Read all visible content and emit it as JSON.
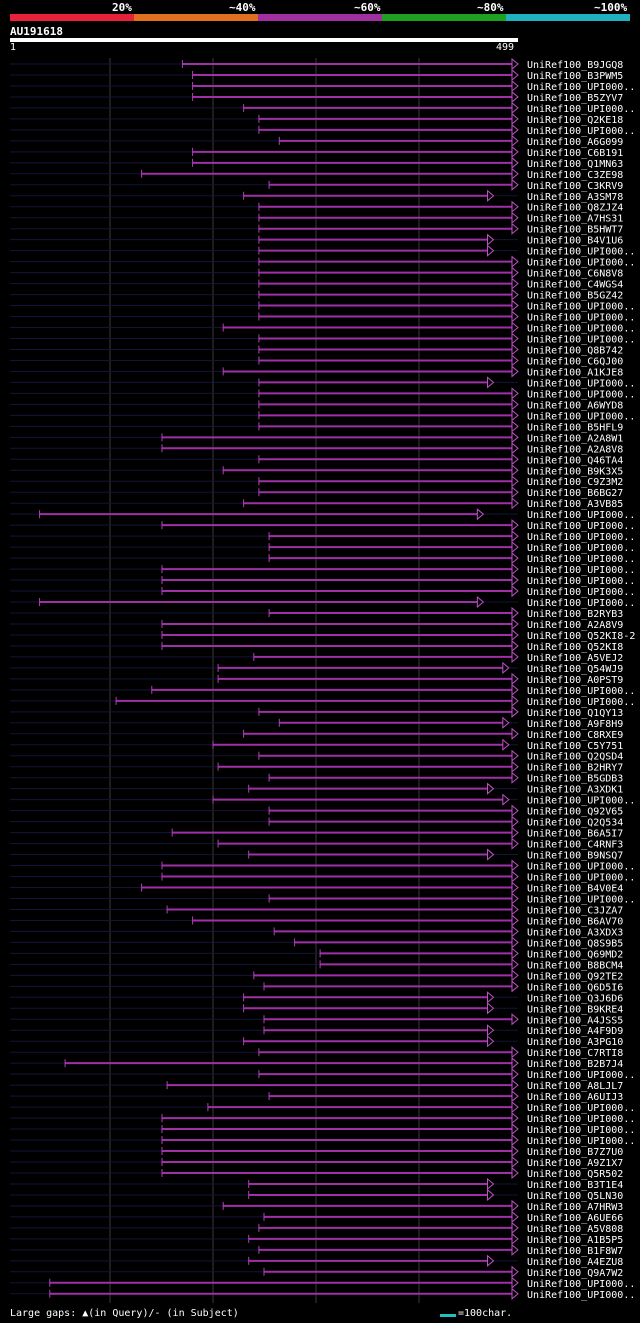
{
  "header": {
    "percent_labels": [
      "20%",
      "~40%",
      "~60%",
      "~80%",
      "~100%"
    ],
    "colors": [
      "#e8203a",
      "#e07020",
      "#a030a0",
      "#20a020",
      "#20b0c0"
    ],
    "query_id": "AU191618",
    "ruler_start": "1",
    "ruler_end": "499"
  },
  "footer": {
    "gaps_text": "Large gaps: ▲(in Query)/- (in Subject)",
    "scale_text": "=100char."
  },
  "chart_data": {
    "type": "alignment",
    "query_length": 499,
    "rows": [
      {
        "name": "UniRef100_B9JGQ8",
        "start": 170,
        "end": 499
      },
      {
        "name": "UniRef100_B3PWM5",
        "start": 180,
        "end": 499
      },
      {
        "name": "UniRef100_UPI000..",
        "start": 180,
        "end": 499
      },
      {
        "name": "UniRef100_B5ZYV7",
        "start": 180,
        "end": 499
      },
      {
        "name": "UniRef100_UPI000..",
        "start": 230,
        "end": 499
      },
      {
        "name": "UniRef100_Q2KE18",
        "start": 245,
        "end": 499
      },
      {
        "name": "UniRef100_UPI000..",
        "start": 245,
        "end": 499
      },
      {
        "name": "UniRef100_A6G099",
        "start": 265,
        "end": 499
      },
      {
        "name": "UniRef100_C6B191",
        "start": 180,
        "end": 499
      },
      {
        "name": "UniRef100_Q1MN63",
        "start": 180,
        "end": 499
      },
      {
        "name": "UniRef100_C3ZE98",
        "start": 130,
        "end": 499
      },
      {
        "name": "UniRef100_C3KRV9",
        "start": 255,
        "end": 499
      },
      {
        "name": "UniRef100_A3SM78",
        "start": 230,
        "end": 475
      },
      {
        "name": "UniRef100_Q8ZJZ4",
        "start": 245,
        "end": 499
      },
      {
        "name": "UniRef100_A7HS31",
        "start": 245,
        "end": 499
      },
      {
        "name": "UniRef100_B5HWT7",
        "start": 245,
        "end": 499
      },
      {
        "name": "UniRef100_B4V1U6",
        "start": 245,
        "end": 475
      },
      {
        "name": "UniRef100_UPI000..",
        "start": 245,
        "end": 475
      },
      {
        "name": "UniRef100_UPI000..",
        "start": 245,
        "end": 499
      },
      {
        "name": "UniRef100_C6N8V8",
        "start": 245,
        "end": 499
      },
      {
        "name": "UniRef100_C4WGS4",
        "start": 245,
        "end": 499
      },
      {
        "name": "UniRef100_B5GZ42",
        "start": 245,
        "end": 499
      },
      {
        "name": "UniRef100_UPI000..",
        "start": 245,
        "end": 499
      },
      {
        "name": "UniRef100_UPI000..",
        "start": 245,
        "end": 499
      },
      {
        "name": "UniRef100_UPI000..",
        "start": 210,
        "end": 499
      },
      {
        "name": "UniRef100_UPI000..",
        "start": 245,
        "end": 499
      },
      {
        "name": "UniRef100_Q8B742",
        "start": 245,
        "end": 499
      },
      {
        "name": "UniRef100_C6QJ00",
        "start": 245,
        "end": 499
      },
      {
        "name": "UniRef100_A1KJE8",
        "start": 210,
        "end": 499
      },
      {
        "name": "UniRef100_UPI000..",
        "start": 245,
        "end": 475
      },
      {
        "name": "UniRef100_UPI000..",
        "start": 245,
        "end": 499
      },
      {
        "name": "UniRef100_A6WYD8",
        "start": 245,
        "end": 499
      },
      {
        "name": "UniRef100_UPI000..",
        "start": 245,
        "end": 499
      },
      {
        "name": "UniRef100_B5HFL9",
        "start": 245,
        "end": 499
      },
      {
        "name": "UniRef100_A2A8W1",
        "start": 150,
        "end": 499
      },
      {
        "name": "UniRef100_A2A8V8",
        "start": 150,
        "end": 499
      },
      {
        "name": "UniRef100_Q46TA4",
        "start": 245,
        "end": 499
      },
      {
        "name": "UniRef100_B9K3X5",
        "start": 210,
        "end": 499
      },
      {
        "name": "UniRef100_C9Z3M2",
        "start": 245,
        "end": 499
      },
      {
        "name": "UniRef100_B6BG27",
        "start": 245,
        "end": 499
      },
      {
        "name": "UniRef100_A3VB85",
        "start": 230,
        "end": 499
      },
      {
        "name": "UniRef100_UPI000..",
        "start": 30,
        "end": 465
      },
      {
        "name": "UniRef100_UPI000..",
        "start": 150,
        "end": 499
      },
      {
        "name": "UniRef100_UPI000..",
        "start": 255,
        "end": 499
      },
      {
        "name": "UniRef100_UPI000..",
        "start": 255,
        "end": 499
      },
      {
        "name": "UniRef100_UPI000..",
        "start": 255,
        "end": 499
      },
      {
        "name": "UniRef100_UPI000..",
        "start": 150,
        "end": 499
      },
      {
        "name": "UniRef100_UPI000..",
        "start": 150,
        "end": 499
      },
      {
        "name": "UniRef100_UPI000..",
        "start": 150,
        "end": 499
      },
      {
        "name": "UniRef100_UPI000..",
        "start": 30,
        "end": 465
      },
      {
        "name": "UniRef100_B2RYB3",
        "start": 255,
        "end": 499
      },
      {
        "name": "UniRef100_A2A8V9",
        "start": 150,
        "end": 499
      },
      {
        "name": "UniRef100_Q52KI8-2",
        "start": 150,
        "end": 499
      },
      {
        "name": "UniRef100_Q52KI8",
        "start": 150,
        "end": 499
      },
      {
        "name": "UniRef100_A5VEJ2",
        "start": 240,
        "end": 499
      },
      {
        "name": "UniRef100_Q54WJ9",
        "start": 205,
        "end": 490
      },
      {
        "name": "UniRef100_A0PST9",
        "start": 205,
        "end": 499
      },
      {
        "name": "UniRef100_UPI000..",
        "start": 140,
        "end": 499
      },
      {
        "name": "UniRef100_UPI000..",
        "start": 105,
        "end": 499
      },
      {
        "name": "UniRef100_Q1QY13",
        "start": 245,
        "end": 499
      },
      {
        "name": "UniRef100_A9F8H9",
        "start": 265,
        "end": 490
      },
      {
        "name": "UniRef100_C8RXE9",
        "start": 230,
        "end": 499
      },
      {
        "name": "UniRef100_C5Y751",
        "start": 200,
        "end": 490
      },
      {
        "name": "UniRef100_Q2QSD4",
        "start": 245,
        "end": 499
      },
      {
        "name": "UniRef100_B2HRY7",
        "start": 205,
        "end": 499
      },
      {
        "name": "UniRef100_B5GDB3",
        "start": 255,
        "end": 499
      },
      {
        "name": "UniRef100_A3XDK1",
        "start": 235,
        "end": 475
      },
      {
        "name": "UniRef100_UPI000..",
        "start": 200,
        "end": 490
      },
      {
        "name": "UniRef100_Q92V65",
        "start": 255,
        "end": 499
      },
      {
        "name": "UniRef100_Q2Q534",
        "start": 255,
        "end": 499
      },
      {
        "name": "UniRef100_B6A5I7",
        "start": 160,
        "end": 499
      },
      {
        "name": "UniRef100_C4RNF3",
        "start": 205,
        "end": 499
      },
      {
        "name": "UniRef100_B9NSQ7",
        "start": 235,
        "end": 475
      },
      {
        "name": "UniRef100_UPI000..",
        "start": 150,
        "end": 499
      },
      {
        "name": "UniRef100_UPI000..",
        "start": 150,
        "end": 499
      },
      {
        "name": "UniRef100_B4V0E4",
        "start": 130,
        "end": 499
      },
      {
        "name": "UniRef100_UPI000..",
        "start": 255,
        "end": 499
      },
      {
        "name": "UniRef100_C3JZA7",
        "start": 155,
        "end": 499
      },
      {
        "name": "UniRef100_B6AV70",
        "start": 180,
        "end": 499
      },
      {
        "name": "UniRef100_A3XDX3",
        "start": 260,
        "end": 499
      },
      {
        "name": "UniRef100_Q8S9B5",
        "start": 280,
        "end": 499
      },
      {
        "name": "UniRef100_Q69MD2",
        "start": 305,
        "end": 499
      },
      {
        "name": "UniRef100_B8BCM4",
        "start": 305,
        "end": 499
      },
      {
        "name": "UniRef100_Q92TE2",
        "start": 240,
        "end": 499
      },
      {
        "name": "UniRef100_Q6D5I6",
        "start": 250,
        "end": 499
      },
      {
        "name": "UniRef100_Q3J6D6",
        "start": 230,
        "end": 475
      },
      {
        "name": "UniRef100_B9KRE4",
        "start": 230,
        "end": 475
      },
      {
        "name": "UniRef100_A4JSS5",
        "start": 250,
        "end": 499
      },
      {
        "name": "UniRef100_A4F9D9",
        "start": 250,
        "end": 475
      },
      {
        "name": "UniRef100_A3PG10",
        "start": 230,
        "end": 475
      },
      {
        "name": "UniRef100_C7RTI8",
        "start": 245,
        "end": 499
      },
      {
        "name": "UniRef100_B2B7J4",
        "start": 55,
        "end": 499
      },
      {
        "name": "UniRef100_UPI000..",
        "start": 245,
        "end": 499
      },
      {
        "name": "UniRef100_A8LJL7",
        "start": 155,
        "end": 499
      },
      {
        "name": "UniRef100_A6UIJ3",
        "start": 255,
        "end": 499
      },
      {
        "name": "UniRef100_UPI000..",
        "start": 195,
        "end": 499
      },
      {
        "name": "UniRef100_UPI000..",
        "start": 150,
        "end": 499
      },
      {
        "name": "UniRef100_UPI000..",
        "start": 150,
        "end": 499
      },
      {
        "name": "UniRef100_UPI000..",
        "start": 150,
        "end": 499
      },
      {
        "name": "UniRef100_B7Z7U0",
        "start": 150,
        "end": 499
      },
      {
        "name": "UniRef100_A9Z1X7",
        "start": 150,
        "end": 499
      },
      {
        "name": "UniRef100_Q5R502",
        "start": 150,
        "end": 499
      },
      {
        "name": "UniRef100_B3T1E4",
        "start": 235,
        "end": 475
      },
      {
        "name": "UniRef100_Q5LN30",
        "start": 235,
        "end": 475
      },
      {
        "name": "UniRef100_A7HRW3",
        "start": 210,
        "end": 499
      },
      {
        "name": "UniRef100_A6UE66",
        "start": 250,
        "end": 499
      },
      {
        "name": "UniRef100_A5V808",
        "start": 245,
        "end": 499
      },
      {
        "name": "UniRef100_A1B5P5",
        "start": 235,
        "end": 499
      },
      {
        "name": "UniRef100_B1F8W7",
        "start": 245,
        "end": 499
      },
      {
        "name": "UniRef100_A4EZU8",
        "start": 235,
        "end": 475
      },
      {
        "name": "UniRef100_Q9A7W2",
        "start": 250,
        "end": 499
      },
      {
        "name": "UniRef100_UPI000..",
        "start": 40,
        "end": 499
      },
      {
        "name": "UniRef100_UPI000..",
        "start": 40,
        "end": 499
      }
    ]
  }
}
